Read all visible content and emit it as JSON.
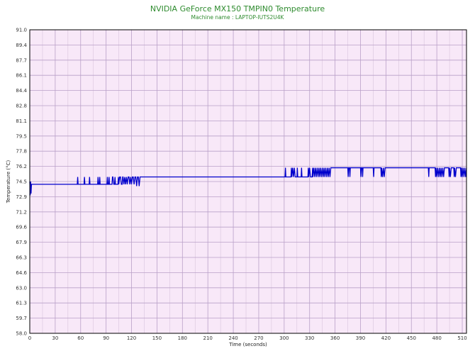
{
  "chart_data": {
    "type": "line",
    "title": "NVIDIA GeForce MX150 TMPIN0 Temperature",
    "subtitle": "Machine name : LAPTOP-IUTS2U4K",
    "xlabel": "Time (seconds)",
    "ylabel": "Temperature (°C)",
    "xlim": [
      0,
      515
    ],
    "ylim": [
      58.0,
      91.0
    ],
    "grid": true,
    "x_ticks": [
      "0",
      "30",
      "60",
      "90",
      "120",
      "150",
      "180",
      "210",
      "240",
      "270",
      "300",
      "330",
      "360",
      "390",
      "420",
      "450",
      "480",
      "510"
    ],
    "x_tick_values": [
      0,
      30,
      60,
      90,
      120,
      150,
      180,
      210,
      240,
      270,
      300,
      330,
      360,
      390,
      420,
      450,
      480,
      510
    ],
    "y_ticks": [
      "91.0",
      "89.4",
      "87.7",
      "86.1",
      "84.4",
      "82.8",
      "81.1",
      "79.5",
      "77.8",
      "76.2",
      "74.5",
      "72.9",
      "71.2",
      "69.6",
      "67.9",
      "66.3",
      "64.6",
      "63.0",
      "61.3",
      "59.7",
      "58.0"
    ],
    "y_tick_values": [
      91.0,
      89.35,
      87.7,
      86.05,
      84.4,
      82.75,
      81.1,
      79.45,
      77.8,
      76.15,
      74.5,
      72.85,
      71.2,
      69.55,
      67.9,
      66.25,
      64.6,
      62.95,
      61.3,
      59.65,
      58.0
    ],
    "series": [
      {
        "color": "#0000cc",
        "points": [
          [
            0,
            74.5
          ],
          [
            0.5,
            73.0
          ],
          [
            1,
            74.5
          ],
          [
            1.5,
            73.2
          ],
          [
            2,
            74.2
          ],
          [
            56,
            74.2
          ],
          [
            56.5,
            75.0
          ],
          [
            57,
            74.2
          ],
          [
            64,
            74.2
          ],
          [
            64.5,
            75.0
          ],
          [
            65,
            74.2
          ],
          [
            70,
            74.2
          ],
          [
            70.5,
            75.0
          ],
          [
            71,
            74.2
          ],
          [
            80,
            74.2
          ],
          [
            80.5,
            75.0
          ],
          [
            81,
            74.2
          ],
          [
            82,
            74.2
          ],
          [
            82.5,
            75.0
          ],
          [
            83,
            74.2
          ],
          [
            91,
            74.2
          ],
          [
            91.5,
            75.0
          ],
          [
            92,
            74.2
          ],
          [
            93,
            74.2
          ],
          [
            93.5,
            75.0
          ],
          [
            94,
            74.2
          ],
          [
            97,
            74.2
          ],
          [
            97.5,
            75.0
          ],
          [
            98,
            75.0
          ],
          [
            99,
            74.2
          ],
          [
            100,
            74.2
          ],
          [
            100.5,
            75.0
          ],
          [
            101,
            74.2
          ],
          [
            104,
            74.2
          ],
          [
            104.5,
            75.0
          ],
          [
            105,
            74.2
          ],
          [
            106,
            75.0
          ],
          [
            107,
            75.0
          ],
          [
            108,
            74.2
          ],
          [
            109,
            74.2
          ],
          [
            109.5,
            75.0
          ],
          [
            110,
            75.0
          ],
          [
            111,
            74.2
          ],
          [
            112,
            75.0
          ],
          [
            113,
            74.2
          ],
          [
            114,
            75.0
          ],
          [
            115,
            74.2
          ],
          [
            116,
            75.0
          ],
          [
            117,
            75.0
          ],
          [
            118,
            74.2
          ],
          [
            119,
            75.0
          ],
          [
            120,
            74.2
          ],
          [
            121,
            75.0
          ],
          [
            122,
            75.0
          ],
          [
            123,
            74.2
          ],
          [
            124,
            75.0
          ],
          [
            125,
            75.0
          ],
          [
            126,
            74.0
          ],
          [
            127,
            75.0
          ],
          [
            128,
            75.0
          ],
          [
            129,
            74.0
          ],
          [
            130,
            75.0
          ],
          [
            301,
            75.0
          ],
          [
            301.5,
            76.0
          ],
          [
            302,
            75.0
          ],
          [
            308,
            75.0
          ],
          [
            308.5,
            76.0
          ],
          [
            309,
            75.0
          ],
          [
            310,
            76.0
          ],
          [
            311,
            75.0
          ],
          [
            312,
            76.0
          ],
          [
            313,
            75.0
          ],
          [
            315,
            75.0
          ],
          [
            315.5,
            76.0
          ],
          [
            316,
            75.0
          ],
          [
            320,
            75.0
          ],
          [
            320.5,
            76.0
          ],
          [
            321,
            75.0
          ],
          [
            328,
            75.0
          ],
          [
            328.5,
            76.0
          ],
          [
            329,
            75.0
          ],
          [
            330,
            76.0
          ],
          [
            331,
            75.0
          ],
          [
            333,
            75.0
          ],
          [
            333.5,
            76.0
          ],
          [
            334,
            75.0
          ],
          [
            335,
            76.0
          ],
          [
            336,
            75.0
          ],
          [
            337,
            76.0
          ],
          [
            338,
            75.0
          ],
          [
            339,
            76.0
          ],
          [
            340,
            75.0
          ],
          [
            341,
            76.0
          ],
          [
            342,
            75.0
          ],
          [
            343,
            76.0
          ],
          [
            344,
            75.0
          ],
          [
            345,
            76.0
          ],
          [
            346,
            75.0
          ],
          [
            347,
            76.0
          ],
          [
            348,
            75.0
          ],
          [
            349,
            76.0
          ],
          [
            350,
            75.0
          ],
          [
            351,
            76.0
          ],
          [
            352,
            75.0
          ],
          [
            353,
            76.0
          ],
          [
            354,
            75.0
          ],
          [
            355,
            76.0
          ],
          [
            375,
            76.0
          ],
          [
            375.5,
            75.0
          ],
          [
            376,
            76.0
          ],
          [
            377,
            76.0
          ],
          [
            377.5,
            75.0
          ],
          [
            378,
            76.0
          ],
          [
            390,
            76.0
          ],
          [
            390.5,
            75.0
          ],
          [
            391,
            76.0
          ],
          [
            392,
            76.0
          ],
          [
            392.5,
            75.0
          ],
          [
            393,
            76.0
          ],
          [
            405,
            76.0
          ],
          [
            405.5,
            75.0
          ],
          [
            406,
            76.0
          ],
          [
            414,
            76.0
          ],
          [
            414.5,
            75.0
          ],
          [
            415,
            76.0
          ],
          [
            416,
            75.0
          ],
          [
            417,
            76.0
          ],
          [
            418,
            75.0
          ],
          [
            419,
            76.0
          ],
          [
            470,
            76.0
          ],
          [
            470.5,
            75.0
          ],
          [
            471,
            76.0
          ],
          [
            478,
            76.0
          ],
          [
            478.5,
            75.0
          ],
          [
            479,
            76.0
          ],
          [
            480,
            75.0
          ],
          [
            481,
            76.0
          ],
          [
            482,
            75.0
          ],
          [
            483,
            76.0
          ],
          [
            484,
            75.0
          ],
          [
            485,
            76.0
          ],
          [
            486,
            75.0
          ],
          [
            487,
            76.0
          ],
          [
            488,
            75.0
          ],
          [
            489,
            76.0
          ],
          [
            494,
            76.0
          ],
          [
            494.5,
            75.0
          ],
          [
            495,
            76.0
          ],
          [
            496,
            75.0
          ],
          [
            497,
            76.0
          ],
          [
            498,
            76.0
          ],
          [
            500,
            76.0
          ],
          [
            500.5,
            75.0
          ],
          [
            501,
            76.0
          ],
          [
            502,
            75.0
          ],
          [
            503,
            76.0
          ],
          [
            508,
            76.0
          ],
          [
            508.5,
            75.0
          ],
          [
            509,
            76.0
          ],
          [
            510,
            75.0
          ],
          [
            511,
            76.0
          ],
          [
            512,
            75.0
          ],
          [
            513,
            76.0
          ],
          [
            514,
            75.0
          ],
          [
            515,
            76.0
          ]
        ]
      }
    ]
  }
}
